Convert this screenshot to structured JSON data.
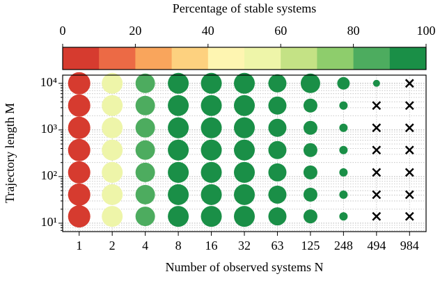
{
  "chart_data": {
    "type": "bubble-grid",
    "colorbar": {
      "title": "Percentage of stable systems",
      "lim": [
        0,
        100
      ],
      "ticks": [
        0,
        20,
        40,
        60,
        80,
        100
      ],
      "colors": [
        "#d63b2f",
        "#ec6a45",
        "#f9a55c",
        "#fdd17f",
        "#fef5b1",
        "#eef5a9",
        "#c4e285",
        "#8ecd6c",
        "#4dac5f",
        "#1a8f47"
      ]
    },
    "x_label": "Number of observed systems N",
    "y_label": "Trajectory length M",
    "categories": [
      "1",
      "2",
      "4",
      "8",
      "16",
      "32",
      "63",
      "125",
      "248",
      "494",
      "984"
    ],
    "y": [
      10000,
      3333,
      1111,
      370,
      123,
      41,
      14
    ],
    "ylim": [
      6.6,
      15000
    ],
    "log_y": true,
    "grid": true,
    "yticks": [
      {
        "value": 10,
        "label": "10¹"
      },
      {
        "value": 100,
        "label": "10²"
      },
      {
        "value": 1000,
        "label": "10³"
      },
      {
        "value": 10000,
        "label": "10⁴"
      }
    ],
    "yminorticks": [
      7,
      8,
      9,
      20,
      30,
      40,
      50,
      60,
      70,
      80,
      90,
      200,
      300,
      400,
      500,
      600,
      700,
      800,
      900,
      2000,
      3000,
      4000,
      5000,
      6000,
      7000,
      8000,
      9000
    ],
    "values": [
      [
        5,
        55,
        85,
        95,
        95,
        95,
        95,
        95,
        95,
        95,
        null
      ],
      [
        5,
        55,
        85,
        95,
        95,
        95,
        95,
        95,
        95,
        null,
        null
      ],
      [
        5,
        55,
        85,
        95,
        95,
        95,
        95,
        95,
        95,
        null,
        null
      ],
      [
        5,
        55,
        85,
        95,
        95,
        95,
        95,
        95,
        95,
        null,
        null
      ],
      [
        5,
        55,
        85,
        95,
        95,
        95,
        95,
        95,
        95,
        null,
        null
      ],
      [
        5,
        55,
        85,
        95,
        95,
        95,
        95,
        95,
        95,
        null,
        null
      ],
      [
        5,
        55,
        85,
        95,
        95,
        95,
        95,
        95,
        95,
        null,
        null
      ]
    ],
    "sizes": [
      [
        16,
        15,
        14,
        15,
        15,
        15,
        13,
        14,
        9,
        5,
        null
      ],
      [
        16,
        15,
        14,
        15,
        15,
        15,
        13,
        10,
        6,
        null,
        null
      ],
      [
        16,
        15,
        14,
        15,
        15,
        15,
        13,
        10,
        6,
        null,
        null
      ],
      [
        16,
        15,
        14,
        15,
        15,
        15,
        13,
        10,
        6,
        null,
        null
      ],
      [
        16,
        15,
        14,
        15,
        15,
        15,
        13,
        10,
        6,
        null,
        null
      ],
      [
        16,
        15,
        14,
        15,
        15,
        15,
        13,
        10,
        6,
        null,
        null
      ],
      [
        16,
        15,
        14,
        15,
        15,
        15,
        13,
        10,
        6,
        null,
        null
      ]
    ]
  }
}
